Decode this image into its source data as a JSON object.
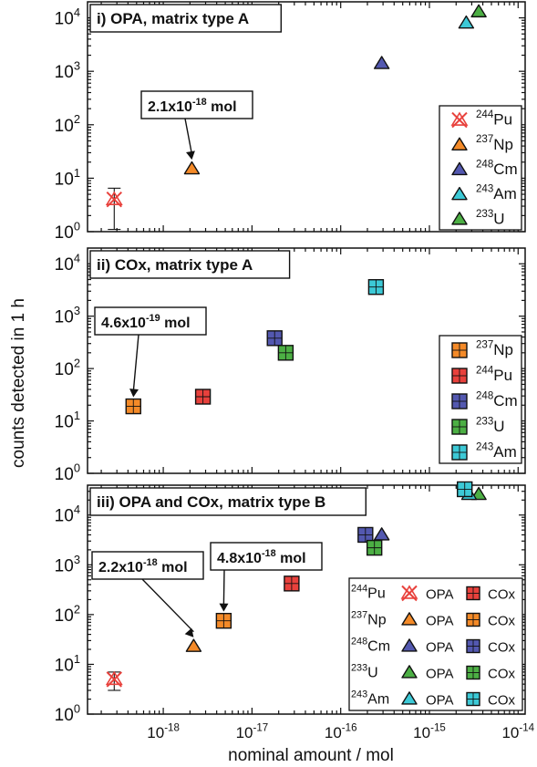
{
  "colors": {
    "Pu244": "#e8413c",
    "Np237": "#f48a28",
    "Cm248": "#5358b0",
    "Am243": "#3cc9d6",
    "U233": "#4caf44"
  },
  "axes": {
    "ylabel": "counts detected in 1 h",
    "xlabel": "nominal amount / mol",
    "x_ticks": [
      {
        "exp": -18,
        "label": "10",
        "sup": "-18"
      },
      {
        "exp": -17,
        "label": "10",
        "sup": "-17"
      },
      {
        "exp": -16,
        "label": "10",
        "sup": "-16"
      },
      {
        "exp": -15,
        "label": "10",
        "sup": "-15"
      },
      {
        "exp": -14,
        "label": "10",
        "sup": "-14"
      }
    ],
    "y_tick_base": "10",
    "y_tick_sups": [
      "0",
      "1",
      "2",
      "3",
      "4"
    ]
  },
  "chart_data": [
    {
      "type": "scatter",
      "title": "i) OPA, matrix type A",
      "xlabel": "nominal amount / mol",
      "ylabel": "counts detected in 1 h",
      "x_scale": "log",
      "y_scale": "log",
      "xlim": [
        1.4e-19,
        1.2e-14
      ],
      "ylim": [
        1,
        20000
      ],
      "annotation": {
        "text": "2.1x10",
        "sup": "-18",
        "unit": " mol",
        "points_to": [
          2.1e-18,
          15
        ]
      },
      "legend": {
        "placement": "right",
        "items": [
          {
            "iso": "244",
            "el": "Pu",
            "color_key": "Pu244",
            "marker": "cross"
          },
          {
            "iso": "237",
            "el": "Np",
            "color_key": "Np237",
            "marker": "triangle"
          },
          {
            "iso": "248",
            "el": "Cm",
            "color_key": "Cm248",
            "marker": "triangle"
          },
          {
            "iso": "243",
            "el": "Am",
            "color_key": "Am243",
            "marker": "triangle"
          },
          {
            "iso": "233",
            "el": "U",
            "color_key": "U233",
            "marker": "triangle"
          }
        ]
      },
      "series": [
        {
          "name": "244Pu",
          "color_key": "Pu244",
          "marker": "cross",
          "points": [
            {
              "x": 2.8e-19,
              "y": 4,
              "err_low": 1.1,
              "err_high": 6.5
            }
          ]
        },
        {
          "name": "237Np",
          "color_key": "Np237",
          "marker": "triangle",
          "points": [
            {
              "x": 2.1e-18,
              "y": 15
            }
          ]
        },
        {
          "name": "248Cm",
          "color_key": "Cm248",
          "marker": "triangle",
          "points": [
            {
              "x": 2.9e-16,
              "y": 1400
            }
          ]
        },
        {
          "name": "243Am",
          "color_key": "Am243",
          "marker": "triangle",
          "points": [
            {
              "x": 2.6e-15,
              "y": 8000
            }
          ]
        },
        {
          "name": "233U",
          "color_key": "U233",
          "marker": "triangle",
          "points": [
            {
              "x": 3.6e-15,
              "y": 13000
            }
          ]
        }
      ]
    },
    {
      "type": "scatter",
      "title": "ii) COx, matrix type A",
      "xlabel": "nominal amount / mol",
      "ylabel": "counts detected in 1 h",
      "x_scale": "log",
      "y_scale": "log",
      "xlim": [
        1.4e-19,
        1.2e-14
      ],
      "ylim": [
        1,
        20000
      ],
      "annotation": {
        "text": "4.6x10",
        "sup": "-19",
        "unit": " mol",
        "points_to": [
          4.6e-19,
          19
        ]
      },
      "legend": {
        "placement": "right",
        "items": [
          {
            "iso": "237",
            "el": "Np",
            "color_key": "Np237",
            "marker": "square"
          },
          {
            "iso": "244",
            "el": "Pu",
            "color_key": "Pu244",
            "marker": "square"
          },
          {
            "iso": "248",
            "el": "Cm",
            "color_key": "Cm248",
            "marker": "square"
          },
          {
            "iso": "233",
            "el": "U",
            "color_key": "U233",
            "marker": "square"
          },
          {
            "iso": "243",
            "el": "Am",
            "color_key": "Am243",
            "marker": "square"
          }
        ]
      },
      "series": [
        {
          "name": "237Np",
          "color_key": "Np237",
          "marker": "square",
          "points": [
            {
              "x": 4.6e-19,
              "y": 19
            }
          ]
        },
        {
          "name": "244Pu",
          "color_key": "Pu244",
          "marker": "square",
          "points": [
            {
              "x": 2.8e-18,
              "y": 29
            }
          ]
        },
        {
          "name": "248Cm",
          "color_key": "Cm248",
          "marker": "square",
          "points": [
            {
              "x": 1.8e-17,
              "y": 380
            }
          ]
        },
        {
          "name": "233U",
          "color_key": "U233",
          "marker": "square",
          "points": [
            {
              "x": 2.4e-17,
              "y": 200
            }
          ]
        },
        {
          "name": "243Am",
          "color_key": "Am243",
          "marker": "square",
          "points": [
            {
              "x": 2.5e-16,
              "y": 3600
            }
          ]
        }
      ]
    },
    {
      "type": "scatter",
      "title": "iii) OPA and COx, matrix type B",
      "xlabel": "nominal amount / mol",
      "ylabel": "counts detected in 1 h",
      "x_scale": "log",
      "y_scale": "log",
      "xlim": [
        1.4e-19,
        1.2e-14
      ],
      "ylim": [
        1,
        40000
      ],
      "annotations": [
        {
          "text": "2.2x10",
          "sup": "-18",
          "unit": " mol",
          "points_to": [
            2.2e-18,
            23
          ]
        },
        {
          "text": "4.8x10",
          "sup": "-18",
          "unit": " mol",
          "points_to": [
            4.8e-18,
            75
          ]
        }
      ],
      "legend": {
        "placement": "bottom-right",
        "col_opa": "OPA",
        "col_cox": "COx",
        "rows": [
          {
            "iso": "244",
            "el": "Pu",
            "color_key": "Pu244",
            "opa_marker": "cross"
          },
          {
            "iso": "237",
            "el": "Np",
            "color_key": "Np237",
            "opa_marker": "triangle"
          },
          {
            "iso": "248",
            "el": "Cm",
            "color_key": "Cm248",
            "opa_marker": "triangle"
          },
          {
            "iso": "233",
            "el": "U",
            "color_key": "U233",
            "opa_marker": "triangle"
          },
          {
            "iso": "243",
            "el": "Am",
            "color_key": "Am243",
            "opa_marker": "triangle"
          }
        ]
      },
      "series": [
        {
          "name": "244Pu OPA",
          "color_key": "Pu244",
          "marker": "cross",
          "points": [
            {
              "x": 2.8e-19,
              "y": 5,
              "err_low": 3,
              "err_high": 7
            }
          ]
        },
        {
          "name": "237Np OPA",
          "color_key": "Np237",
          "marker": "triangle",
          "points": [
            {
              "x": 2.2e-18,
              "y": 23
            }
          ]
        },
        {
          "name": "248Cm OPA",
          "color_key": "Cm248",
          "marker": "triangle",
          "points": [
            {
              "x": 2.9e-16,
              "y": 4000
            }
          ]
        },
        {
          "name": "233U OPA",
          "color_key": "U233",
          "marker": "triangle",
          "points": [
            {
              "x": 3.6e-15,
              "y": 26000
            }
          ]
        },
        {
          "name": "243Am OPA",
          "color_key": "Am243",
          "marker": "triangle",
          "points": [
            {
              "x": 2.8e-15,
              "y": 26000
            }
          ]
        },
        {
          "name": "244Pu COx",
          "color_key": "Pu244",
          "marker": "square",
          "points": [
            {
              "x": 2.8e-17,
              "y": 420
            }
          ]
        },
        {
          "name": "237Np COx",
          "color_key": "Np237",
          "marker": "square",
          "points": [
            {
              "x": 4.8e-18,
              "y": 75
            }
          ]
        },
        {
          "name": "248Cm COx",
          "color_key": "Cm248",
          "marker": "square",
          "points": [
            {
              "x": 1.9e-16,
              "y": 4000
            }
          ]
        },
        {
          "name": "233U COx",
          "color_key": "U233",
          "marker": "square",
          "points": [
            {
              "x": 2.4e-16,
              "y": 2200
            }
          ]
        },
        {
          "name": "243Am COx",
          "color_key": "Am243",
          "marker": "square",
          "points": [
            {
              "x": 2.5e-15,
              "y": 33000
            }
          ]
        }
      ]
    }
  ]
}
